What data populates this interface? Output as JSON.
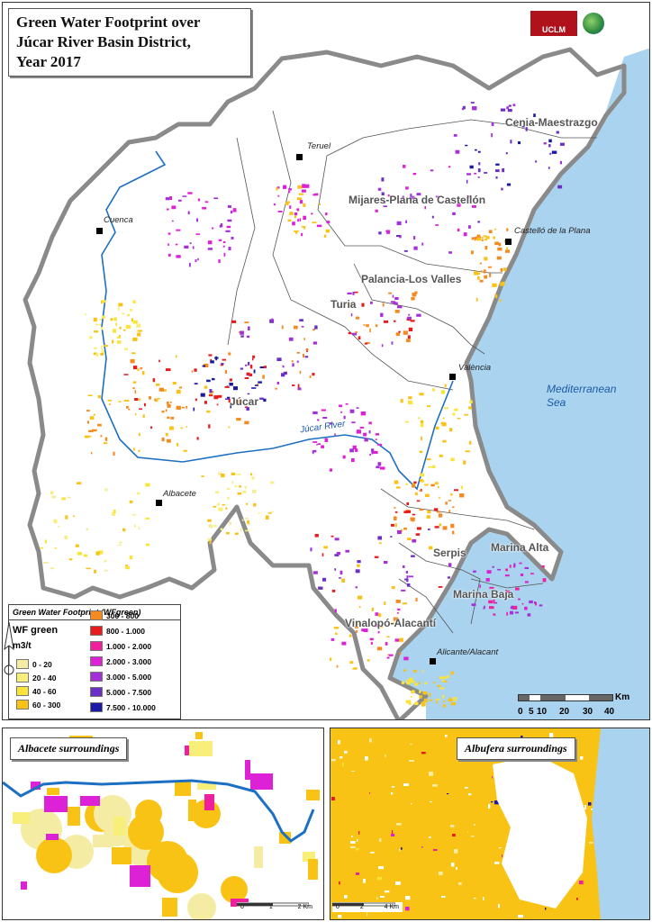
{
  "title": [
    "Green Water Footprint over",
    "Júcar River Basin District,",
    "Year 2017"
  ],
  "logos": {
    "uclm": "UCLM"
  },
  "cities": [
    {
      "name": "Teruel"
    },
    {
      "name": "Cuenca"
    },
    {
      "name": "Castelló de la Plana"
    },
    {
      "name": "València"
    },
    {
      "name": "Albacete"
    },
    {
      "name": "Alicante/Alacant"
    }
  ],
  "regions": [
    "Cenia-Maestrazgo",
    "Mijares-Plana de Castellón",
    "Palancia-Los Valles",
    "Turia",
    "Júcar",
    "Serpis",
    "Marina Alta",
    "Marina Baja",
    "Vinalopó-Alacantí"
  ],
  "sea_label": [
    "Mediterranean",
    "Sea"
  ],
  "river_label": "Júcar River",
  "legend": {
    "title": "Green Water Footprint (WFgreen)",
    "variable": "WF green",
    "unit": "m3/t",
    "classes": [
      {
        "label": "0 - 20",
        "color": "#f4eca2"
      },
      {
        "label": "20 - 40",
        "color": "#f7ef7a"
      },
      {
        "label": "40 - 60",
        "color": "#fbe43a"
      },
      {
        "label": "60 - 300",
        "color": "#f9c316"
      },
      {
        "label": "300 - 800",
        "color": "#f58a1f"
      },
      {
        "label": "800 - 1.000",
        "color": "#e81c1c"
      },
      {
        "label": "1.000 - 2.000",
        "color": "#f01fa0"
      },
      {
        "label": "2.000 - 3.000",
        "color": "#dc21d6"
      },
      {
        "label": "3.000 - 5.000",
        "color": "#a52fd8"
      },
      {
        "label": "5.000 - 7.500",
        "color": "#6b2fc6"
      },
      {
        "label": "7.500 - 10.000",
        "color": "#1b1aa5"
      }
    ]
  },
  "scale_main": {
    "labels": [
      "0",
      "5",
      "10",
      "20",
      "30",
      "40"
    ],
    "unit": "Km"
  },
  "insets": [
    {
      "title": "Albacete surroundings",
      "scale_labels": [
        "0",
        "1",
        "2 Km"
      ]
    },
    {
      "title": "Albufera surroundings",
      "scale_labels": [
        "0",
        "2",
        "4 Km"
      ]
    }
  ],
  "colors": {
    "sea": "#aad3ef",
    "boundary": "#8a8a8a",
    "river": "#1d6fc4"
  }
}
